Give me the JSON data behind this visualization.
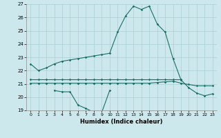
{
  "x": [
    0,
    1,
    2,
    3,
    4,
    5,
    6,
    7,
    8,
    9,
    10,
    11,
    12,
    13,
    14,
    15,
    16,
    17,
    18,
    19,
    20,
    21,
    22,
    23
  ],
  "line1": [
    22.5,
    22.0,
    22.2,
    22.5,
    22.7,
    22.8,
    22.9,
    23.0,
    23.1,
    23.2,
    23.3,
    24.9,
    26.1,
    26.85,
    26.6,
    26.85,
    25.5,
    24.9,
    22.9,
    21.3,
    20.7,
    20.3,
    20.1,
    20.25
  ],
  "line2_x": [
    0,
    1,
    2,
    3,
    4,
    5,
    6,
    7,
    8,
    9,
    10,
    11,
    12,
    13,
    14,
    15,
    16,
    17,
    18,
    19
  ],
  "line2_y": [
    21.35,
    21.35,
    21.35,
    21.35,
    21.35,
    21.35,
    21.35,
    21.35,
    21.35,
    21.35,
    21.35,
    21.35,
    21.35,
    21.35,
    21.35,
    21.35,
    21.35,
    21.35,
    21.35,
    21.35
  ],
  "line3_x": [
    0,
    1,
    2,
    3,
    4,
    5,
    6,
    7,
    8,
    9,
    10,
    11,
    12,
    13,
    14,
    15,
    16,
    17,
    18,
    19,
    20,
    21,
    22,
    23
  ],
  "line3_y": [
    21.05,
    21.05,
    21.05,
    21.05,
    21.05,
    21.05,
    21.05,
    21.05,
    21.05,
    21.05,
    21.05,
    21.05,
    21.05,
    21.05,
    21.05,
    21.05,
    21.1,
    21.15,
    21.2,
    21.05,
    20.95,
    20.85,
    20.85,
    20.85
  ],
  "line4_x": [
    3,
    4,
    5,
    6,
    7,
    8,
    9,
    10
  ],
  "line4_y": [
    20.5,
    20.4,
    20.4,
    19.4,
    19.15,
    18.85,
    18.85,
    20.5
  ],
  "bg_color": "#cce8ed",
  "grid_color": "#aacdd4",
  "line_color": "#1a6e65",
  "xlabel": "Humidex (Indice chaleur)",
  "ylim": [
    19,
    27
  ],
  "xlim_min": -0.5,
  "xlim_max": 23.5,
  "yticks": [
    19,
    20,
    21,
    22,
    23,
    24,
    25,
    26,
    27
  ],
  "xticks": [
    0,
    1,
    2,
    3,
    4,
    5,
    6,
    7,
    8,
    9,
    10,
    11,
    12,
    13,
    14,
    15,
    16,
    17,
    18,
    19,
    20,
    21,
    22,
    23
  ]
}
